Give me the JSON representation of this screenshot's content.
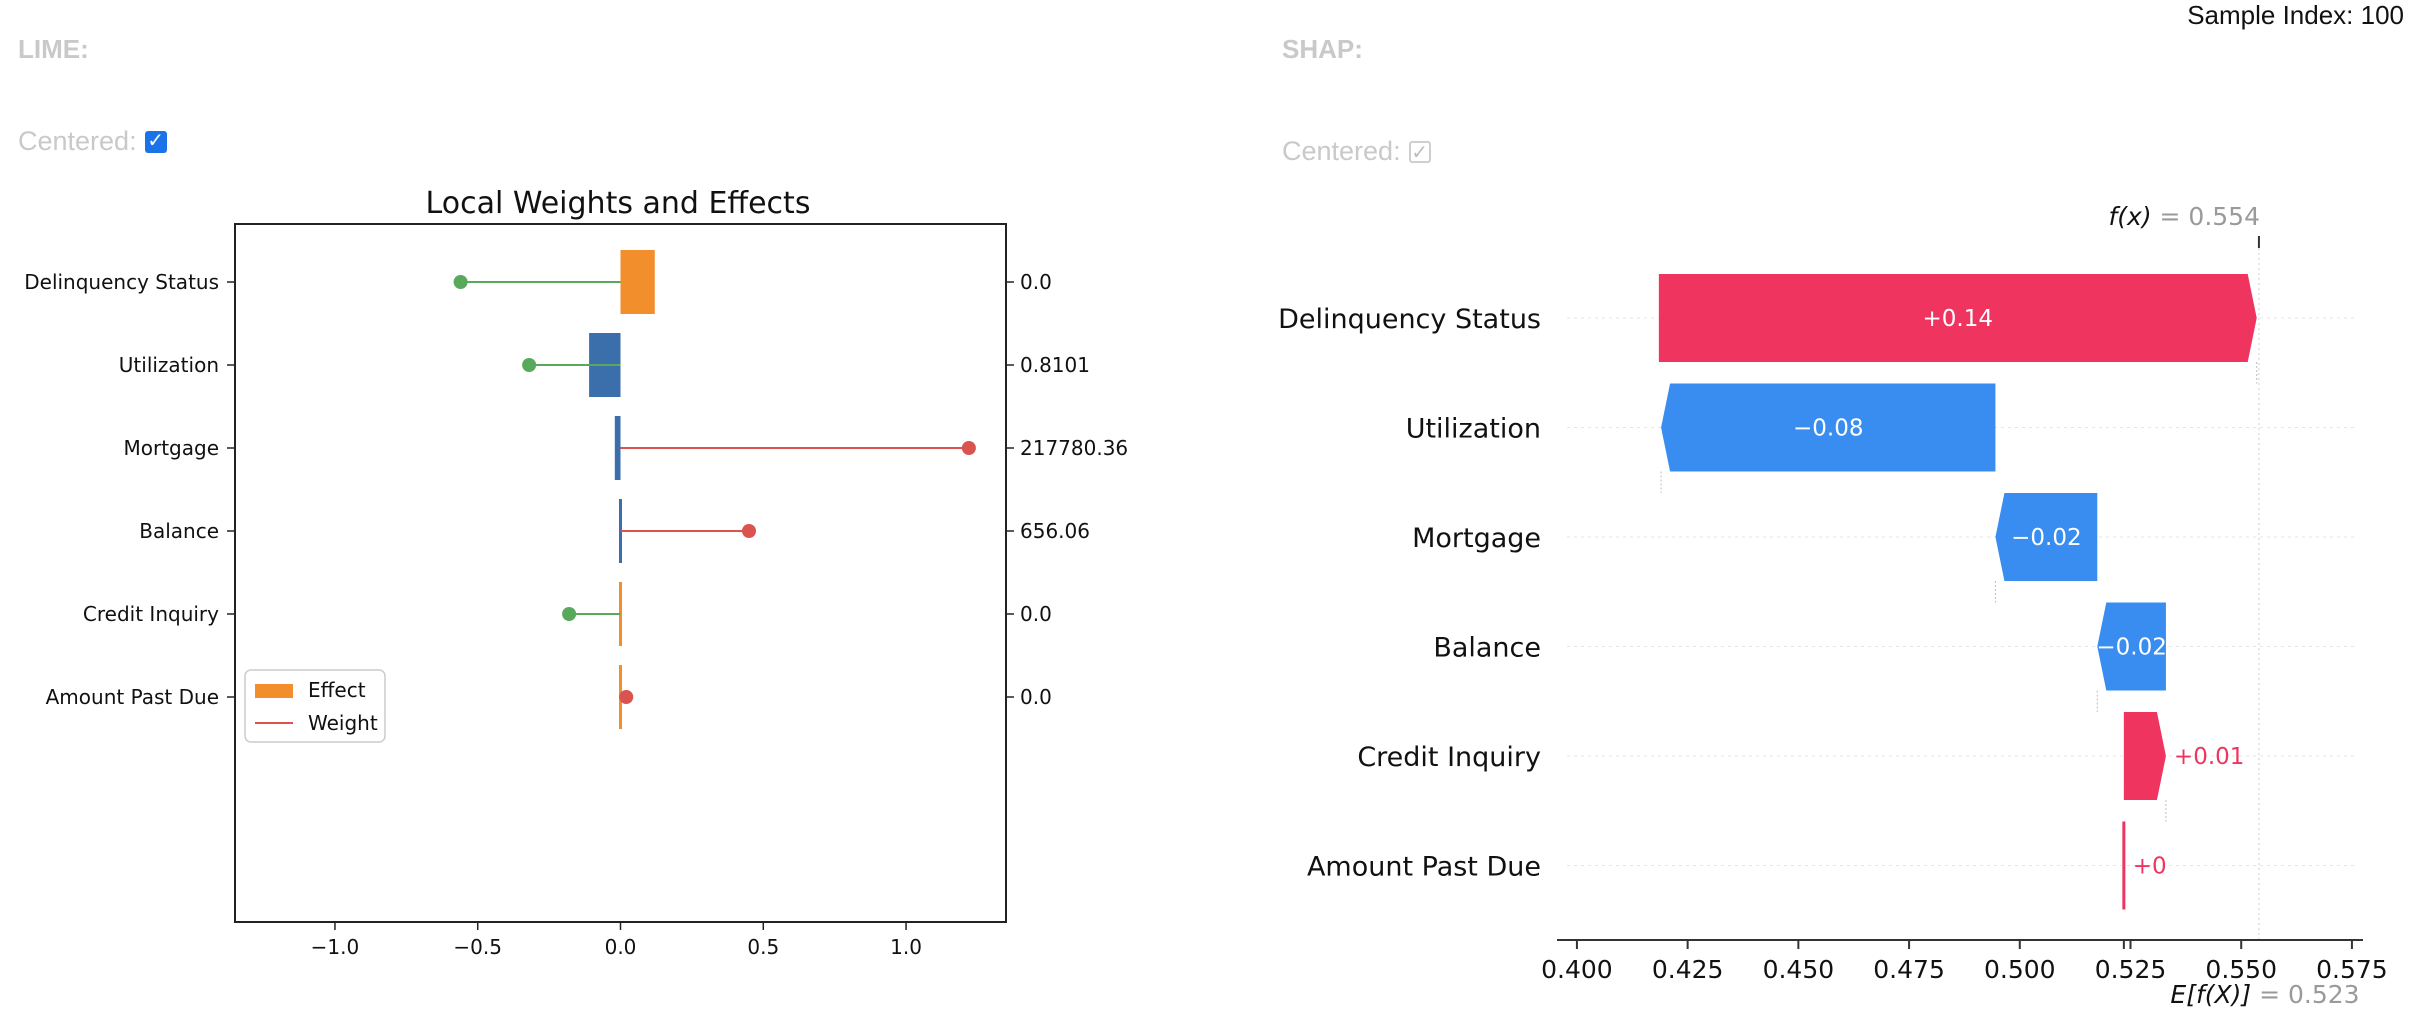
{
  "sample_index": "Sample Index: 100",
  "lime": {
    "label": "LIME:",
    "centered_label": "Centered:",
    "centered_checked": true,
    "checkbox_color": "#1a73e8"
  },
  "shap": {
    "label": "SHAP:",
    "centered_label": "Centered:",
    "centered_checked": true
  },
  "tick_glyph": "✓",
  "colors": {
    "effect": "#f28e2b",
    "effect_negative": "#3a6fab",
    "weight_positive": "#d9534f",
    "weight_negative": "#59a95c",
    "shap_positive": "#ef3460",
    "shap_negative": "#3a8df0"
  },
  "chart_data": [
    {
      "type": "bar",
      "title": "Local Weights and Effects",
      "categories": [
        "Delinquency Status",
        "Utilization",
        "Mortgage",
        "Balance",
        "Credit Inquiry",
        "Amount Past Due"
      ],
      "feature_values": [
        "0.0",
        "0.8101",
        "217780.36",
        "656.06",
        "0.0",
        "0.0"
      ],
      "series": [
        {
          "name": "Effect",
          "values": [
            0.12,
            -0.11,
            -0.02,
            -0.01,
            0.0,
            0.0
          ]
        },
        {
          "name": "Weight",
          "values": [
            -0.56,
            -0.32,
            1.22,
            0.45,
            -0.18,
            0.02
          ]
        }
      ],
      "xlim": [
        -1.35,
        1.35
      ],
      "xticks": [
        -1.0,
        -0.5,
        0.0,
        0.5,
        1.0
      ],
      "xtick_labels": [
        "−1.0",
        "−0.5",
        "0.0",
        "0.5",
        "1.0"
      ],
      "legend": "lower-left"
    },
    {
      "type": "waterfall",
      "categories": [
        "Delinquency Status",
        "Utilization",
        "Mortgage",
        "Balance",
        "Credit Inquiry",
        "Amount Past Due"
      ],
      "values": [
        0.14,
        -0.08,
        -0.02,
        -0.02,
        0.01,
        0.0
      ],
      "value_labels": [
        "+0.14",
        "−0.08",
        "−0.02",
        "−0.02",
        "+0.01",
        "+0"
      ],
      "bar_starts": [
        0.4185,
        0.4945,
        0.5175,
        0.533,
        0.5235,
        0.5235
      ],
      "bar_ends": [
        0.5535,
        0.419,
        0.4945,
        0.5175,
        0.533,
        0.5237
      ],
      "fx_label": "f(x)",
      "fx_value": "= 0.554",
      "ex_label": "E[f(X)]",
      "ex_value": "= 0.523",
      "fx": 0.554,
      "ex": 0.5235,
      "xlim": [
        0.3955,
        0.5775
      ],
      "xticks": [
        0.4,
        0.425,
        0.45,
        0.475,
        0.5,
        0.525,
        0.55,
        0.575
      ],
      "xtick_labels": [
        "0.400",
        "0.425",
        "0.450",
        "0.475",
        "0.500",
        "0.525",
        "0.550",
        "0.575"
      ]
    }
  ]
}
